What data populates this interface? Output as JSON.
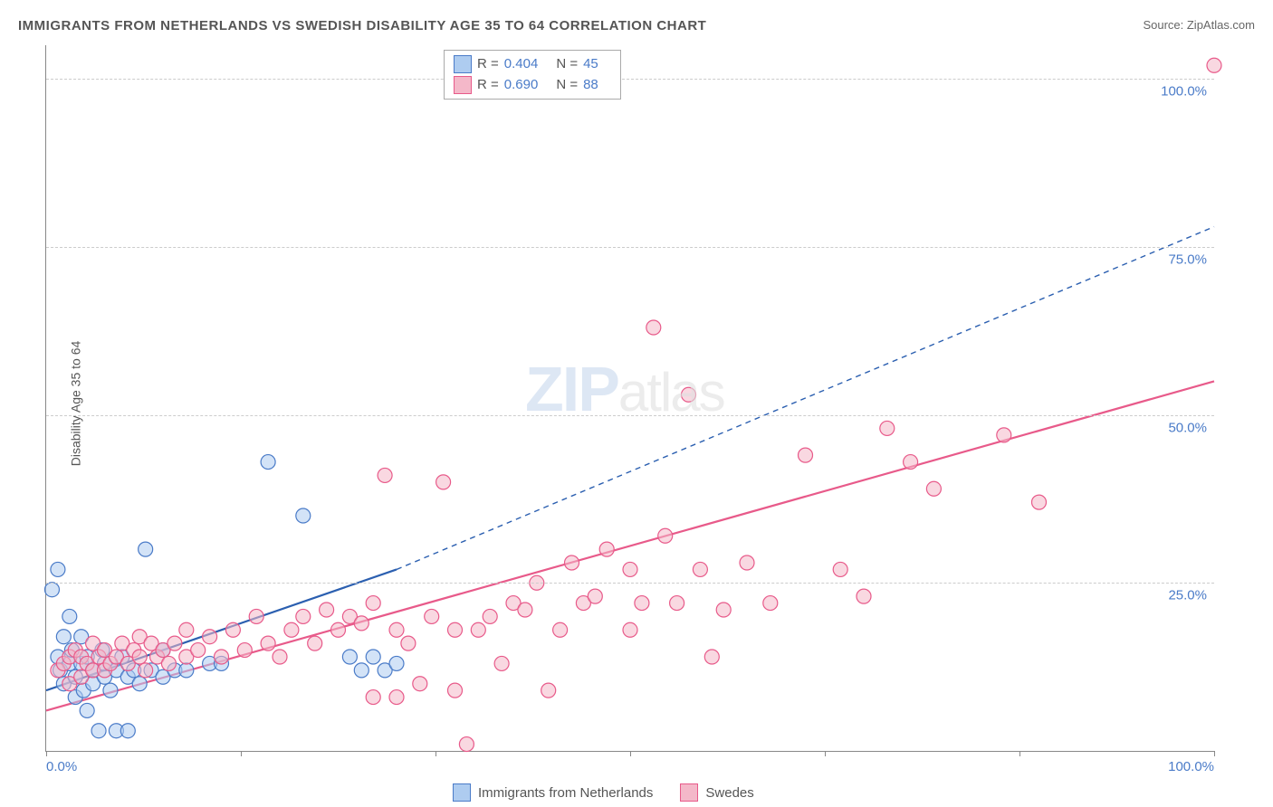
{
  "title": "IMMIGRANTS FROM NETHERLANDS VS SWEDISH DISABILITY AGE 35 TO 64 CORRELATION CHART",
  "source_label": "Source: ",
  "source_name": "ZipAtlas.com",
  "ylabel": "Disability Age 35 to 64",
  "watermark_a": "ZIP",
  "watermark_b": "atlas",
  "chart": {
    "type": "scatter",
    "xlim": [
      0,
      100
    ],
    "ylim": [
      0,
      105
    ],
    "x_ticks": [
      0,
      16.67,
      33.33,
      50,
      66.67,
      83.33,
      100
    ],
    "x_tick_labels_start": "0.0%",
    "x_tick_labels_end": "100.0%",
    "y_gridlines": [
      25,
      50,
      75,
      100
    ],
    "y_tick_labels": [
      "25.0%",
      "50.0%",
      "75.0%",
      "100.0%"
    ],
    "grid_color": "#cccccc",
    "background_color": "#ffffff",
    "axis_color": "#888888",
    "tick_label_color": "#4a7bc8",
    "marker_radius": 8,
    "marker_stroke_width": 1.2,
    "series": [
      {
        "name": "Immigrants from Netherlands",
        "fill": "#aeccf0",
        "stroke": "#4a7bc8",
        "fill_opacity": 0.55,
        "R": "0.404",
        "N": "45",
        "regression": {
          "x1": 0,
          "y1": 9,
          "x2": 30,
          "y2": 27,
          "color": "#2b5fb0",
          "width": 2.2,
          "dash": "none",
          "ext_x2": 100,
          "ext_y2": 78,
          "ext_dash": "6 5",
          "ext_width": 1.4
        },
        "points": [
          [
            0.5,
            24
          ],
          [
            1,
            27
          ],
          [
            1,
            14
          ],
          [
            1.2,
            12
          ],
          [
            1.5,
            17
          ],
          [
            1.5,
            10
          ],
          [
            2,
            20
          ],
          [
            2,
            13
          ],
          [
            2.2,
            15
          ],
          [
            2.5,
            11
          ],
          [
            2.5,
            8
          ],
          [
            3,
            13
          ],
          [
            3,
            17
          ],
          [
            3.2,
            9
          ],
          [
            3.5,
            14
          ],
          [
            3.5,
            6
          ],
          [
            4,
            12
          ],
          [
            4,
            10
          ],
          [
            4.5,
            3
          ],
          [
            4.8,
            15
          ],
          [
            5,
            11
          ],
          [
            5,
            13
          ],
          [
            5.5,
            9
          ],
          [
            6,
            3
          ],
          [
            6,
            12
          ],
          [
            6.5,
            14
          ],
          [
            7,
            3
          ],
          [
            7,
            11
          ],
          [
            7.5,
            12
          ],
          [
            8,
            10
          ],
          [
            8.5,
            30
          ],
          [
            9,
            12
          ],
          [
            10,
            11
          ],
          [
            10,
            15
          ],
          [
            11,
            12
          ],
          [
            12,
            12
          ],
          [
            14,
            13
          ],
          [
            15,
            13
          ],
          [
            19,
            43
          ],
          [
            22,
            35
          ],
          [
            26,
            14
          ],
          [
            27,
            12
          ],
          [
            28,
            14
          ],
          [
            29,
            12
          ],
          [
            30,
            13
          ]
        ]
      },
      {
        "name": "Swedes",
        "fill": "#f4b8c9",
        "stroke": "#e85a8a",
        "fill_opacity": 0.55,
        "R": "0.690",
        "N": "88",
        "regression": {
          "x1": 0,
          "y1": 6,
          "x2": 100,
          "y2": 55,
          "color": "#e85a8a",
          "width": 2.2,
          "dash": "none"
        },
        "points": [
          [
            1,
            12
          ],
          [
            1.5,
            13
          ],
          [
            2,
            10
          ],
          [
            2,
            14
          ],
          [
            2.5,
            15
          ],
          [
            3,
            11
          ],
          [
            3,
            14
          ],
          [
            3.5,
            13
          ],
          [
            4,
            12
          ],
          [
            4,
            16
          ],
          [
            4.5,
            14
          ],
          [
            5,
            15
          ],
          [
            5,
            12
          ],
          [
            5.5,
            13
          ],
          [
            6,
            14
          ],
          [
            6.5,
            16
          ],
          [
            7,
            13
          ],
          [
            7.5,
            15
          ],
          [
            8,
            14
          ],
          [
            8,
            17
          ],
          [
            8.5,
            12
          ],
          [
            9,
            16
          ],
          [
            9.5,
            14
          ],
          [
            10,
            15
          ],
          [
            10.5,
            13
          ],
          [
            11,
            16
          ],
          [
            12,
            14
          ],
          [
            12,
            18
          ],
          [
            13,
            15
          ],
          [
            14,
            17
          ],
          [
            15,
            14
          ],
          [
            16,
            18
          ],
          [
            17,
            15
          ],
          [
            18,
            20
          ],
          [
            19,
            16
          ],
          [
            20,
            14
          ],
          [
            21,
            18
          ],
          [
            22,
            20
          ],
          [
            23,
            16
          ],
          [
            24,
            21
          ],
          [
            25,
            18
          ],
          [
            26,
            20
          ],
          [
            27,
            19
          ],
          [
            28,
            22
          ],
          [
            28,
            8
          ],
          [
            29,
            41
          ],
          [
            30,
            8
          ],
          [
            30,
            18
          ],
          [
            31,
            16
          ],
          [
            32,
            10
          ],
          [
            33,
            20
          ],
          [
            34,
            40
          ],
          [
            35,
            18
          ],
          [
            35,
            9
          ],
          [
            36,
            1
          ],
          [
            37,
            18
          ],
          [
            38,
            20
          ],
          [
            39,
            13
          ],
          [
            40,
            22
          ],
          [
            41,
            21
          ],
          [
            42,
            25
          ],
          [
            43,
            9
          ],
          [
            44,
            18
          ],
          [
            45,
            28
          ],
          [
            46,
            22
          ],
          [
            47,
            23
          ],
          [
            48,
            30
          ],
          [
            50,
            27
          ],
          [
            50,
            18
          ],
          [
            51,
            22
          ],
          [
            52,
            63
          ],
          [
            53,
            32
          ],
          [
            54,
            22
          ],
          [
            55,
            53
          ],
          [
            56,
            27
          ],
          [
            57,
            14
          ],
          [
            58,
            21
          ],
          [
            60,
            28
          ],
          [
            62,
            22
          ],
          [
            65,
            44
          ],
          [
            68,
            27
          ],
          [
            70,
            23
          ],
          [
            72,
            48
          ],
          [
            74,
            43
          ],
          [
            76,
            39
          ],
          [
            82,
            47
          ],
          [
            85,
            37
          ],
          [
            100,
            102
          ]
        ]
      }
    ]
  },
  "legend_top": {
    "r_label": "R = ",
    "n_label": "N = "
  },
  "legend_bottom": {
    "a": "Immigrants from Netherlands",
    "b": "Swedes"
  }
}
